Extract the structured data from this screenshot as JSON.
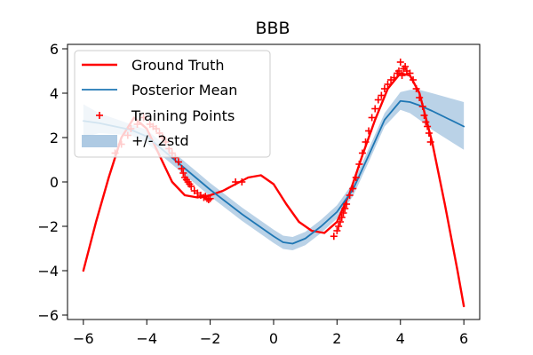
{
  "chart_data": {
    "type": "line",
    "title": "BBB",
    "xlim": [
      -6.5,
      6.5
    ],
    "ylim": [
      -6.2,
      6.2
    ],
    "xticks": [
      -6,
      -4,
      -2,
      0,
      2,
      4,
      6
    ],
    "yticks": [
      -6,
      -4,
      -2,
      0,
      2,
      4,
      6
    ],
    "legend": {
      "placement": "upper-left",
      "entries": [
        {
          "label": "Ground Truth"
        },
        {
          "label": "Posterior Mean"
        },
        {
          "label": "Training Points"
        },
        {
          "label": "+/- 2std"
        }
      ]
    },
    "colors": {
      "ground_truth": "#ff0000",
      "posterior_mean": "#1f77b4",
      "band": "#8fb6d8",
      "training_points": "#ff0000"
    },
    "series": [
      {
        "name": "Ground Truth",
        "x": [
          -6.0,
          -5.6,
          -5.2,
          -4.8,
          -4.4,
          -4.0,
          -3.6,
          -3.2,
          -2.8,
          -2.4,
          -2.0,
          -1.6,
          -1.2,
          -0.8,
          -0.4,
          0.0,
          0.4,
          0.8,
          1.2,
          1.6,
          2.0,
          2.4,
          2.8,
          3.2,
          3.6,
          4.0,
          4.3,
          4.6,
          5.0,
          5.4,
          5.8,
          6.0
        ],
        "y": [
          -4.0,
          -1.8,
          0.2,
          2.0,
          2.9,
          2.4,
          1.2,
          0.0,
          -0.6,
          -0.7,
          -0.6,
          -0.4,
          -0.1,
          0.2,
          0.3,
          -0.1,
          -1.0,
          -1.8,
          -2.2,
          -2.3,
          -1.8,
          -0.5,
          1.2,
          2.8,
          4.2,
          4.9,
          4.8,
          4.0,
          1.8,
          -1.0,
          -4.0,
          -5.6
        ]
      },
      {
        "name": "Posterior Mean",
        "x": [
          -6.0,
          -5.5,
          -5.0,
          -4.5,
          -4.0,
          -3.5,
          -3.0,
          -2.5,
          -2.0,
          -1.5,
          -1.0,
          -0.5,
          0.0,
          0.3,
          0.6,
          1.0,
          1.5,
          2.0,
          2.5,
          3.0,
          3.5,
          4.0,
          4.3,
          4.6,
          5.0,
          5.5,
          6.0
        ],
        "y": [
          2.75,
          2.65,
          2.5,
          2.35,
          2.05,
          1.45,
          0.85,
          0.25,
          -0.35,
          -0.9,
          -1.45,
          -1.95,
          -2.45,
          -2.72,
          -2.78,
          -2.55,
          -2.0,
          -1.35,
          -0.35,
          1.2,
          2.8,
          3.65,
          3.6,
          3.45,
          3.2,
          2.85,
          2.5
        ]
      },
      {
        "name": "Training Points",
        "x": [
          -5.0,
          -4.8,
          -4.6,
          -4.5,
          -4.3,
          -4.1,
          -3.9,
          -3.8,
          -3.7,
          -3.6,
          -3.5,
          -3.4,
          -3.3,
          -3.2,
          -3.1,
          -3.0,
          -2.9,
          -2.85,
          -2.8,
          -2.75,
          -2.7,
          -2.65,
          -2.6,
          -2.5,
          -2.4,
          -2.3,
          -2.2,
          -2.15,
          -2.1,
          -2.05,
          -2.0,
          -1.2,
          -1.0,
          1.9,
          2.0,
          2.05,
          2.1,
          2.15,
          2.2,
          2.25,
          2.3,
          2.4,
          2.5,
          2.6,
          2.7,
          2.8,
          2.9,
          3.0,
          3.1,
          3.2,
          3.3,
          3.4,
          3.5,
          3.6,
          3.7,
          3.8,
          3.9,
          3.95,
          4.0,
          4.05,
          4.1,
          4.15,
          4.2,
          4.3,
          4.4,
          4.5,
          4.6,
          4.7,
          4.75,
          4.8,
          4.85,
          4.9,
          4.95
        ],
        "y": [
          1.3,
          1.7,
          2.1,
          2.4,
          2.6,
          2.9,
          2.6,
          2.5,
          2.4,
          2.2,
          2.0,
          1.8,
          1.5,
          1.3,
          1.1,
          0.9,
          0.6,
          0.4,
          0.2,
          0.1,
          0.0,
          -0.1,
          -0.2,
          -0.4,
          -0.5,
          -0.6,
          -0.7,
          -0.65,
          -0.75,
          -0.8,
          -0.75,
          0.0,
          0.0,
          -2.45,
          -2.2,
          -2.0,
          -1.8,
          -1.6,
          -1.4,
          -1.2,
          -1.0,
          -0.6,
          -0.3,
          0.2,
          0.8,
          1.3,
          1.8,
          2.3,
          2.9,
          3.3,
          3.7,
          3.9,
          4.2,
          4.4,
          4.6,
          4.7,
          4.9,
          5.0,
          5.4,
          4.8,
          5.1,
          5.2,
          5.0,
          4.9,
          4.6,
          4.2,
          3.8,
          3.4,
          3.0,
          2.7,
          2.5,
          2.2,
          1.8
        ]
      }
    ],
    "uncertainty_band": {
      "name": "+/- 2std",
      "x": [
        -6.0,
        -5.5,
        -5.0,
        -4.5,
        -4.0,
        -3.5,
        -3.0,
        -2.5,
        -2.0,
        -1.5,
        -1.0,
        -0.5,
        0.0,
        0.3,
        0.6,
        1.0,
        1.5,
        2.0,
        2.5,
        3.0,
        3.5,
        4.0,
        4.3,
        4.6,
        5.0,
        5.5,
        6.0
      ],
      "lower": [
        2.0,
        2.2,
        2.15,
        2.1,
        1.75,
        1.15,
        0.55,
        -0.05,
        -0.65,
        -1.2,
        -1.75,
        -2.25,
        -2.75,
        -3.02,
        -3.08,
        -2.85,
        -2.3,
        -1.65,
        -0.65,
        0.9,
        2.5,
        3.25,
        3.1,
        2.8,
        2.35,
        1.9,
        1.45
      ],
      "upper": [
        3.5,
        3.1,
        2.85,
        2.6,
        2.35,
        1.75,
        1.15,
        0.55,
        -0.05,
        -0.6,
        -1.15,
        -1.65,
        -2.15,
        -2.42,
        -2.48,
        -2.25,
        -1.7,
        -1.05,
        -0.05,
        1.5,
        3.1,
        4.05,
        4.15,
        4.15,
        4.0,
        3.8,
        3.6
      ]
    }
  }
}
